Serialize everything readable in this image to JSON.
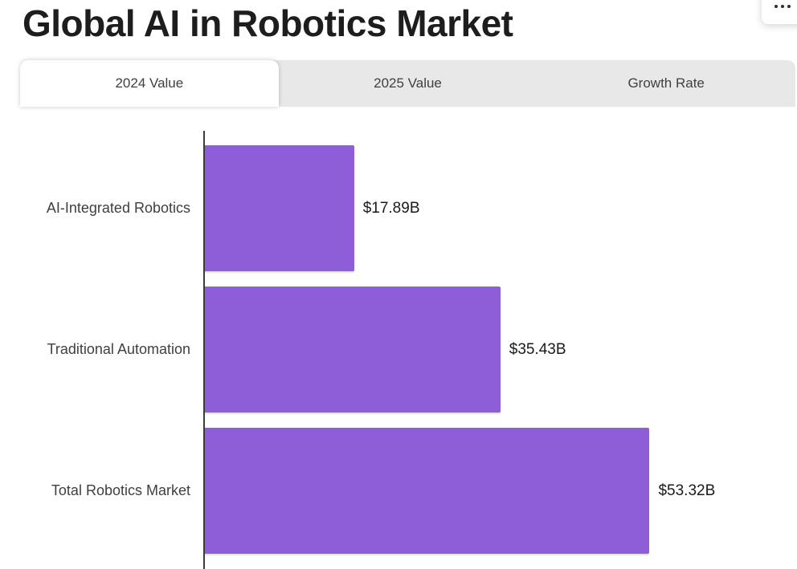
{
  "page": {
    "title": "Global AI in Robotics Market"
  },
  "menu": {
    "icon": "ellipsis-icon"
  },
  "tabs": [
    {
      "label": "2024 Value",
      "active": true
    },
    {
      "label": "2025 Value",
      "active": false
    },
    {
      "label": "Growth Rate",
      "active": false
    }
  ],
  "chart_data": {
    "type": "bar",
    "orientation": "horizontal",
    "title": "Global AI in Robotics Market",
    "categories": [
      "AI-Integrated Robotics",
      "Traditional Automation",
      "Total Robotics Market"
    ],
    "values": [
      17.89,
      35.43,
      53.32
    ],
    "value_labels": [
      "$17.89B",
      "$35.43B",
      "$53.32B"
    ],
    "xlim": [
      0,
      71
    ],
    "grid": false,
    "legend": false,
    "bar_color": "#8d5ed8",
    "axis_color": "#3c3c3c"
  },
  "colors": {
    "tab_inactive_bg": "#e8e8e8",
    "title_text": "#1d1d1d",
    "category_text": "#3f3f3f",
    "value_text": "#1a1a1a"
  }
}
